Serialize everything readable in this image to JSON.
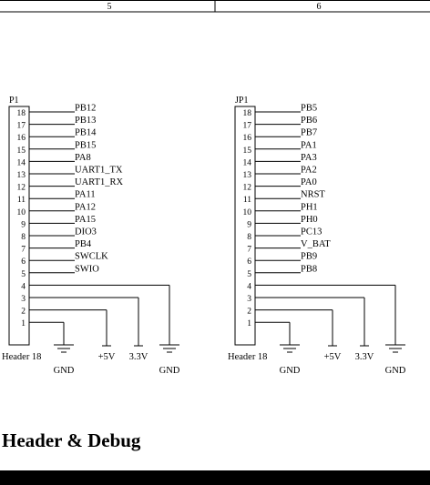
{
  "border": {
    "zone_left": "5",
    "zone_right": "6"
  },
  "section_title": "Header & Debug",
  "connectors": [
    {
      "ref": "P1",
      "part": "Header 18",
      "pin_numbers": [
        "18",
        "17",
        "16",
        "15",
        "14",
        "13",
        "12",
        "11",
        "10",
        "9",
        "8",
        "7",
        "6",
        "5",
        "4",
        "3",
        "2",
        "1"
      ],
      "nets": [
        "PB12",
        "PB13",
        "PB14",
        "PB15",
        "PA8",
        "UART1_TX",
        "UART1_RX",
        "PA11",
        "PA12",
        "PA15",
        "DIO3",
        "PB4",
        "SWCLK",
        "SWIO"
      ],
      "power": {
        "gnd1": "GND",
        "v5": "+5V",
        "v33": "3.3V",
        "gnd2": "GND"
      }
    },
    {
      "ref": "JP1",
      "part": "Header 18",
      "pin_numbers": [
        "18",
        "17",
        "16",
        "15",
        "14",
        "13",
        "12",
        "11",
        "10",
        "9",
        "8",
        "7",
        "6",
        "5",
        "4",
        "3",
        "2",
        "1"
      ],
      "nets": [
        "PB5",
        "PB6",
        "PB7",
        "PA1",
        "PA3",
        "PA2",
        "PA0",
        "NRST",
        "PH1",
        "PH0",
        "PC13",
        "V_BAT",
        "PB9",
        "PB8"
      ],
      "power": {
        "gnd1": "GND",
        "v5": "+5V",
        "v33": "3.3V",
        "gnd2": "GND"
      }
    }
  ]
}
